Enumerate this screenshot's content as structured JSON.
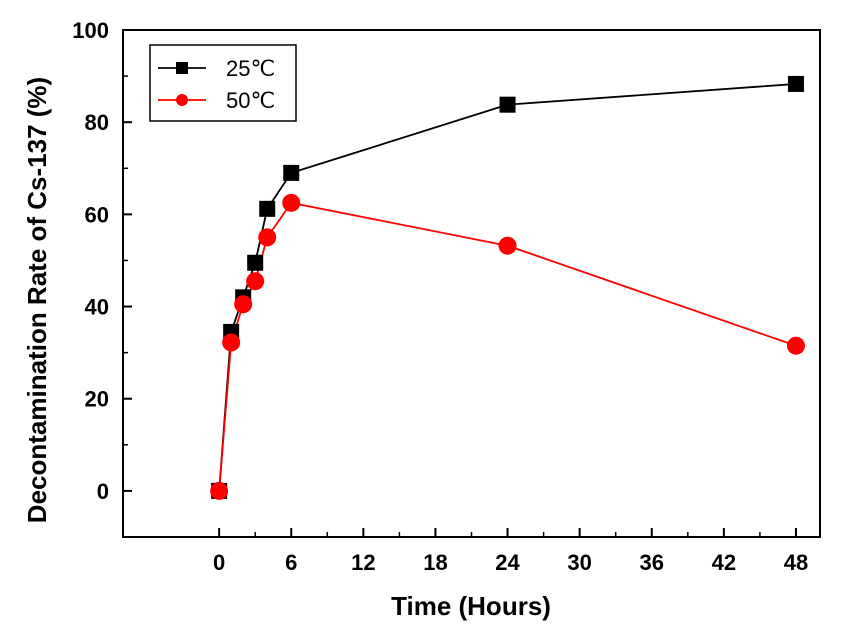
{
  "chart_data": {
    "type": "line",
    "title": "",
    "xlabel": "Time (Hours)",
    "ylabel": "Decontamination Rate of Cs-137 (%)",
    "xlim": [
      -8,
      50
    ],
    "ylim": [
      -10,
      100
    ],
    "xticks": [
      0,
      6,
      12,
      18,
      24,
      30,
      36,
      42,
      48
    ],
    "yticks": [
      0,
      20,
      40,
      60,
      80,
      100
    ],
    "grid": false,
    "legend_position": "top-left",
    "series": [
      {
        "name": "25℃",
        "color": "#000000",
        "marker": "square",
        "x": [
          0,
          1,
          2,
          3,
          4,
          6,
          24,
          48
        ],
        "y": [
          0,
          34.5,
          42,
          49.5,
          61.2,
          69,
          83.8,
          88.3
        ]
      },
      {
        "name": "50℃",
        "color": "#ff0000",
        "marker": "circle",
        "x": [
          0,
          1,
          2,
          3,
          4,
          6,
          24,
          48
        ],
        "y": [
          0,
          32.2,
          40.5,
          45.5,
          55,
          62.5,
          53.2,
          31.5
        ]
      }
    ]
  }
}
